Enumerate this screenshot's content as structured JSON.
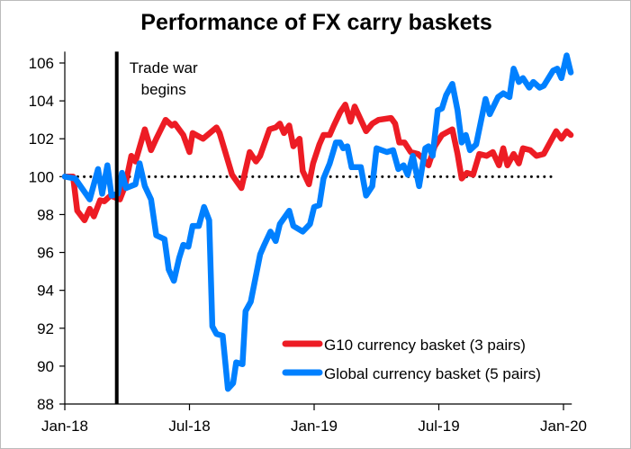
{
  "chart_data": {
    "type": "line",
    "title": "Performance of FX carry baskets",
    "xlabel": "",
    "ylabel": "",
    "x_unit": "months since Jan-18",
    "xlim": [
      0,
      24.4
    ],
    "ylim": [
      88,
      106.6
    ],
    "y_ticks": [
      88,
      90,
      92,
      94,
      96,
      98,
      100,
      102,
      104,
      106
    ],
    "x_ticks": [
      {
        "value": 0,
        "label": "Jan-18"
      },
      {
        "value": 6,
        "label": "Jul-18"
      },
      {
        "value": 12,
        "label": "Jan-19"
      },
      {
        "value": 18,
        "label": "Jul-19"
      },
      {
        "value": 24,
        "label": "Jan-20"
      }
    ],
    "reference_line": 100,
    "annotation": {
      "x": 2.5,
      "label_line1": "Trade war",
      "label_line2": "begins"
    },
    "legend_position": "bottom-right",
    "series": [
      {
        "name": "G10 currency basket (3 pairs)",
        "color": "#ED1C24",
        "x": [
          0,
          0.4,
          0.6,
          0.95,
          1.2,
          1.4,
          1.7,
          1.9,
          2.2,
          2.65,
          2.9,
          3.2,
          3.4,
          3.85,
          4.15,
          4.4,
          4.85,
          5.15,
          5.3,
          5.7,
          6.0,
          6.15,
          6.65,
          7.3,
          7.45,
          8.05,
          8.5,
          8.9,
          9.2,
          9.4,
          9.85,
          10.15,
          10.35,
          10.55,
          10.8,
          11.0,
          11.3,
          11.45,
          11.75,
          11.95,
          12.25,
          12.45,
          12.75,
          12.95,
          13.25,
          13.5,
          13.75,
          13.95,
          14.5,
          14.8,
          15.1,
          15.7,
          15.9,
          16.1,
          16.35,
          16.65,
          17.0,
          17.2,
          17.5,
          17.8,
          18.15,
          18.65,
          18.9,
          19.1,
          19.35,
          19.65,
          19.95,
          20.3,
          20.6,
          20.9,
          21.1,
          21.3,
          21.6,
          21.85,
          22.05,
          22.4,
          22.7,
          23.05,
          23.65,
          23.9,
          24.15,
          24.35
        ],
        "values": [
          100,
          100,
          98.2,
          97.7,
          98.3,
          97.9,
          98.75,
          98.7,
          99.0,
          98.8,
          99.5,
          101.1,
          100.8,
          102.5,
          101.4,
          102.0,
          103.0,
          102.7,
          102.8,
          102.2,
          101.3,
          102.3,
          102.0,
          102.6,
          102.3,
          100.1,
          99.4,
          101.3,
          100.8,
          101.1,
          102.5,
          102.6,
          102.8,
          102.3,
          102.7,
          101.6,
          102.0,
          100.3,
          99.6,
          100.7,
          101.7,
          102.2,
          102.2,
          102.7,
          103.4,
          103.8,
          102.9,
          103.7,
          102.4,
          102.8,
          103.0,
          103.1,
          102.8,
          101.8,
          101.8,
          101.3,
          101.2,
          101.0,
          100.6,
          101.6,
          102.2,
          102.5,
          101.2,
          99.9,
          100.2,
          100.1,
          101.2,
          101.1,
          101.3,
          100.6,
          101.5,
          100.6,
          101.2,
          100.7,
          101.5,
          101.4,
          101.1,
          101.2,
          102.4,
          102.0,
          102.4,
          102.2
        ]
      },
      {
        "name": "Global currency basket (5 pairs)",
        "color": "#0080FF",
        "x": [
          0,
          0.5,
          1.2,
          1.6,
          1.8,
          2.05,
          2.25,
          2.55,
          2.75,
          2.95,
          3.4,
          3.6,
          3.85,
          4.15,
          4.4,
          4.8,
          5.0,
          5.25,
          5.5,
          5.7,
          5.95,
          6.15,
          6.45,
          6.7,
          6.95,
          7.1,
          7.3,
          7.6,
          7.85,
          8.1,
          8.25,
          8.55,
          8.7,
          8.95,
          9.4,
          9.6,
          9.9,
          10.15,
          10.35,
          10.8,
          11.0,
          11.45,
          11.8,
          12.0,
          12.25,
          12.45,
          12.75,
          13.05,
          13.25,
          13.4,
          13.6,
          13.8,
          14.25,
          14.5,
          14.8,
          15.0,
          15.5,
          15.8,
          16.05,
          16.3,
          16.5,
          16.75,
          17.05,
          17.35,
          17.5,
          17.7,
          17.95,
          18.15,
          18.35,
          18.65,
          18.9,
          19.1,
          19.3,
          19.5,
          19.8,
          20.25,
          20.45,
          20.85,
          21.1,
          21.4,
          21.6,
          21.85,
          22.05,
          22.35,
          22.55,
          22.85,
          23.05,
          23.5,
          23.7,
          23.9,
          24.15,
          24.35
        ],
        "values": [
          100,
          99.9,
          98.8,
          100.4,
          99.1,
          100.6,
          99.0,
          99.1,
          100.2,
          99.4,
          99.6,
          100.7,
          99.5,
          98.8,
          96.9,
          96.7,
          95.1,
          94.5,
          95.7,
          96.4,
          96.3,
          97.4,
          97.4,
          98.4,
          97.7,
          92.1,
          91.7,
          91.6,
          88.8,
          89.1,
          90.2,
          90.1,
          92.9,
          93.4,
          95.9,
          96.4,
          97.1,
          96.6,
          97.5,
          98.2,
          97.4,
          97.1,
          97.5,
          98.4,
          98.5,
          99.9,
          100.7,
          101.8,
          101.8,
          101.5,
          101.6,
          100.5,
          100.5,
          99.0,
          99.5,
          101.5,
          101.3,
          101.4,
          100.4,
          100.6,
          100.1,
          101.1,
          99.5,
          101.5,
          101.6,
          101.1,
          103.5,
          103.6,
          104.3,
          104.9,
          103.5,
          101.8,
          102.2,
          101.4,
          101.7,
          104.1,
          103.3,
          104.2,
          104.4,
          104.2,
          105.7,
          105.0,
          105.2,
          104.7,
          105.0,
          104.7,
          104.8,
          105.6,
          105.7,
          105.2,
          106.4,
          105.5
        ]
      }
    ]
  }
}
